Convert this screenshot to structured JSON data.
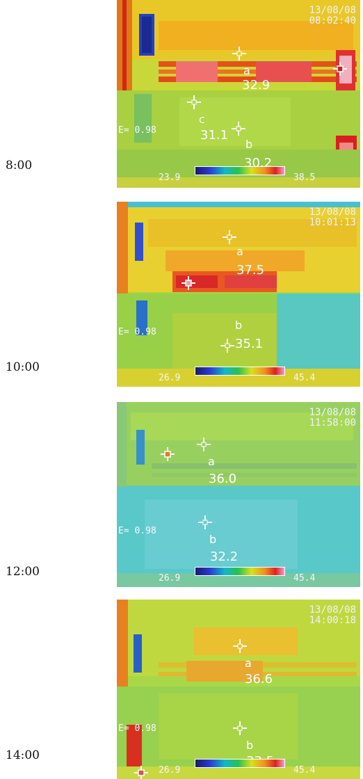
{
  "panels": [
    {
      "time_label": "8:00",
      "timestamp_date": "13/08/08",
      "timestamp_time": "08:02:40",
      "emissivity": "E= 0.98",
      "scale_min": "23.9",
      "scale_max": "38.5",
      "points": [
        {
          "label": "a",
          "value": "32.9"
        },
        {
          "label": "b",
          "value": "30.2"
        },
        {
          "label": "c",
          "value": "31.1"
        }
      ]
    },
    {
      "time_label": "10:00",
      "timestamp_date": "13/08/08",
      "timestamp_time": "10:01:13",
      "emissivity": "E= 0.98",
      "scale_min": "26.9",
      "scale_max": "45.4",
      "points": [
        {
          "label": "a",
          "value": "37.5"
        },
        {
          "label": "b",
          "value": "35.1"
        }
      ]
    },
    {
      "time_label": "12:00",
      "timestamp_date": "13/08/08",
      "timestamp_time": "11:58:00",
      "emissivity": "E= 0.98",
      "scale_min": "26.9",
      "scale_max": "45.4",
      "points": [
        {
          "label": "a",
          "value": "36.0"
        },
        {
          "label": "b",
          "value": "32.2"
        }
      ]
    },
    {
      "time_label": "14:00",
      "timestamp_date": "13/08/08",
      "timestamp_time": "14:00:18",
      "emissivity": "E= 0.98",
      "scale_min": "26.9",
      "scale_max": "45.4",
      "points": [
        {
          "label": "a",
          "value": "36.6"
        },
        {
          "label": "b",
          "value": "33.5"
        }
      ]
    }
  ]
}
